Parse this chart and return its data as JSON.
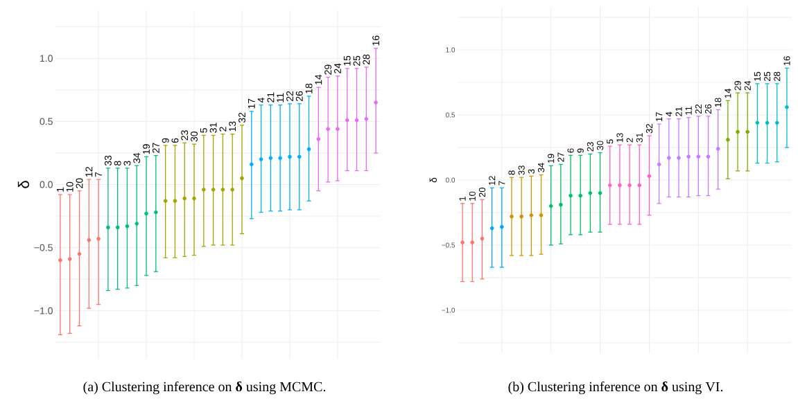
{
  "chart_data": [
    {
      "type": "scatter",
      "ylabel": "δ",
      "grid": true,
      "tick_labels": "y",
      "categories": [
        null,
        null,
        null,
        null,
        null,
        null,
        null,
        null,
        null,
        null,
        null,
        null,
        null,
        null,
        null,
        null,
        null,
        null,
        null,
        null,
        null,
        null,
        null,
        null,
        null,
        null,
        null,
        null,
        null,
        null,
        null,
        null,
        null,
        null
      ],
      "ylim": [
        -1.38,
        1.38
      ],
      "yticks": [
        {
          "value": -1.25,
          "label": null
        },
        {
          "value": -1,
          "label": "−1.0"
        },
        {
          "value": -0.75,
          "label": null
        },
        {
          "value": -0.5,
          "label": "−0.5"
        },
        {
          "value": -0.25,
          "label": null
        },
        {
          "value": 0,
          "label": "0.0"
        },
        {
          "value": 0.25,
          "label": null
        },
        {
          "value": 0.5,
          "label": "0.5"
        },
        {
          "value": 0.75,
          "label": null
        },
        {
          "value": 1,
          "label": "1.0"
        },
        {
          "value": 1.25,
          "label": null
        }
      ],
      "values": [
        -0.6,
        -0.59,
        -0.55,
        -0.44,
        -0.43,
        -0.34,
        -0.34,
        -0.33,
        -0.31,
        -0.23,
        -0.22,
        -0.13,
        -0.13,
        -0.11,
        -0.11,
        -0.04,
        -0.04,
        -0.04,
        -0.04,
        0.05,
        0.16,
        0.2,
        0.21,
        0.21,
        0.22,
        0.22,
        0.28,
        0.36,
        0.44,
        0.44,
        0.51,
        0.51,
        0.52,
        0.65
      ],
      "errors": [
        [
          -1.19,
          -0.08
        ],
        [
          -1.18,
          -0.08
        ],
        [
          -1.12,
          -0.05
        ],
        [
          -0.98,
          0.04
        ],
        [
          -0.95,
          0.04
        ],
        [
          -0.84,
          0.13
        ],
        [
          -0.83,
          0.13
        ],
        [
          -0.82,
          0.13
        ],
        [
          -0.8,
          0.15
        ],
        [
          -0.72,
          0.22
        ],
        [
          -0.69,
          0.23
        ],
        [
          -0.58,
          0.31
        ],
        [
          -0.58,
          0.31
        ],
        [
          -0.57,
          0.33
        ],
        [
          -0.56,
          0.32
        ],
        [
          -0.49,
          0.39
        ],
        [
          -0.48,
          0.39
        ],
        [
          -0.48,
          0.4
        ],
        [
          -0.48,
          0.4
        ],
        [
          -0.39,
          0.47
        ],
        [
          -0.27,
          0.58
        ],
        [
          -0.22,
          0.63
        ],
        [
          -0.21,
          0.63
        ],
        [
          -0.21,
          0.63
        ],
        [
          -0.2,
          0.64
        ],
        [
          -0.2,
          0.64
        ],
        [
          -0.13,
          0.7
        ],
        [
          -0.05,
          0.77
        ],
        [
          0.02,
          0.85
        ],
        [
          0.03,
          0.86
        ],
        [
          0.11,
          0.92
        ],
        [
          0.11,
          0.92
        ],
        [
          0.11,
          0.93
        ],
        [
          0.25,
          1.08
        ]
      ],
      "colors": [
        "#f8766d",
        "#f8766d",
        "#f8766d",
        "#f8766d",
        "#f8766d",
        "#00bf7d",
        "#00bf7d",
        "#00bf7d",
        "#00bf7d",
        "#00bf7d",
        "#00bf7d",
        "#a3a500",
        "#a3a500",
        "#a3a500",
        "#a3a500",
        "#a3a500",
        "#a3a500",
        "#a3a500",
        "#a3a500",
        "#a3a500",
        "#00b0f6",
        "#00b0f6",
        "#00b0f6",
        "#00b0f6",
        "#00b0f6",
        "#00b0f6",
        "#00b0f6",
        "#e76bf3",
        "#e76bf3",
        "#e76bf3",
        "#e76bf3",
        "#e76bf3",
        "#e76bf3",
        "#e76bf3"
      ],
      "annotations": [
        {
          "text": "1",
          "y": -0.08
        },
        {
          "text": "10",
          "y": -0.08
        },
        {
          "text": "20",
          "y": -0.05
        },
        {
          "text": "12",
          "y": 0.04
        },
        {
          "text": "7",
          "y": 0.04
        },
        {
          "text": "33",
          "y": 0.13
        },
        {
          "text": "8",
          "y": 0.13
        },
        {
          "text": "3",
          "y": 0.13
        },
        {
          "text": "34",
          "y": 0.15
        },
        {
          "text": "19",
          "y": 0.22
        },
        {
          "text": "27",
          "y": 0.23
        },
        {
          "text": "9",
          "y": 0.31
        },
        {
          "text": "6",
          "y": 0.31
        },
        {
          "text": "23",
          "y": 0.33
        },
        {
          "text": "30",
          "y": 0.32
        },
        {
          "text": "5",
          "y": 0.39
        },
        {
          "text": "31",
          "y": 0.39
        },
        {
          "text": "2",
          "y": 0.4
        },
        {
          "text": "13",
          "y": 0.4
        },
        {
          "text": "32",
          "y": 0.47
        },
        {
          "text": "17",
          "y": 0.58
        },
        {
          "text": "4",
          "y": 0.63
        },
        {
          "text": "21",
          "y": 0.63
        },
        {
          "text": "11",
          "y": 0.63
        },
        {
          "text": "22",
          "y": 0.64
        },
        {
          "text": "26",
          "y": 0.64
        },
        {
          "text": "18",
          "y": 0.7
        },
        {
          "text": "14",
          "y": 0.77
        },
        {
          "text": "29",
          "y": 0.85
        },
        {
          "text": "24",
          "y": 0.86
        },
        {
          "text": "15",
          "y": 0.92
        },
        {
          "text": "25",
          "y": 0.92
        },
        {
          "text": "28",
          "y": 0.93
        },
        {
          "text": "16",
          "y": 1.08
        },
        "(a) Clustering inference on **δ** using MCMC."
      ]
    },
    {
      "type": "scatter",
      "ylabel": "δ",
      "grid": true,
      "tick_labels": "y",
      "categories": [
        null,
        null,
        null,
        null,
        null,
        null,
        null,
        null,
        null,
        null,
        null,
        null,
        null,
        null,
        null,
        null,
        null,
        null,
        null,
        null,
        null,
        null,
        null,
        null,
        null,
        null,
        null,
        null,
        null,
        null,
        null,
        null,
        null,
        null
      ],
      "ylim": [
        -1.33,
        1.33
      ],
      "yticks": [
        {
          "value": -1.25,
          "label": null
        },
        {
          "value": -1,
          "label": "−1.0"
        },
        {
          "value": -0.75,
          "label": null
        },
        {
          "value": -0.5,
          "label": "−0.5"
        },
        {
          "value": -0.25,
          "label": null
        },
        {
          "value": 0,
          "label": "0.0"
        },
        {
          "value": 0.25,
          "label": null
        },
        {
          "value": 0.5,
          "label": "0.5"
        },
        {
          "value": 0.75,
          "label": null
        },
        {
          "value": 1,
          "label": "1.0"
        },
        {
          "value": 1.25,
          "label": null
        }
      ],
      "values": [
        -0.48,
        -0.48,
        -0.45,
        -0.37,
        -0.36,
        -0.28,
        -0.28,
        -0.27,
        -0.27,
        -0.2,
        -0.19,
        -0.12,
        -0.12,
        -0.1,
        -0.1,
        -0.04,
        -0.04,
        -0.04,
        -0.04,
        0.03,
        0.12,
        0.17,
        0.17,
        0.18,
        0.18,
        0.18,
        0.24,
        0.31,
        0.37,
        0.37,
        0.44,
        0.44,
        0.44,
        0.56
      ],
      "errors": [
        [
          -0.78,
          -0.18
        ],
        [
          -0.78,
          -0.18
        ],
        [
          -0.76,
          -0.15
        ],
        [
          -0.67,
          -0.06
        ],
        [
          -0.67,
          -0.06
        ],
        [
          -0.58,
          0.02
        ],
        [
          -0.58,
          0.02
        ],
        [
          -0.58,
          0.03
        ],
        [
          -0.57,
          0.04
        ],
        [
          -0.5,
          0.11
        ],
        [
          -0.49,
          0.12
        ],
        [
          -0.42,
          0.19
        ],
        [
          -0.42,
          0.19
        ],
        [
          -0.4,
          0.2
        ],
        [
          -0.4,
          0.21
        ],
        [
          -0.34,
          0.26
        ],
        [
          -0.34,
          0.27
        ],
        [
          -0.34,
          0.27
        ],
        [
          -0.34,
          0.27
        ],
        [
          -0.27,
          0.34
        ],
        [
          -0.18,
          0.43
        ],
        [
          -0.13,
          0.47
        ],
        [
          -0.13,
          0.47
        ],
        [
          -0.13,
          0.48
        ],
        [
          -0.12,
          0.49
        ],
        [
          -0.12,
          0.49
        ],
        [
          -0.07,
          0.54
        ],
        [
          0.01,
          0.61
        ],
        [
          0.07,
          0.67
        ],
        [
          0.07,
          0.67
        ],
        [
          0.13,
          0.74
        ],
        [
          0.13,
          0.74
        ],
        [
          0.14,
          0.74
        ],
        [
          0.25,
          0.86
        ]
      ],
      "colors": [
        "#f8766d",
        "#f8766d",
        "#f8766d",
        "#00a9ff",
        "#00a9ff",
        "#cd9600",
        "#cd9600",
        "#cd9600",
        "#cd9600",
        "#00be67",
        "#00be67",
        "#00be67",
        "#00be67",
        "#00be67",
        "#00be67",
        "#ff61c3",
        "#ff61c3",
        "#ff61c3",
        "#ff61c3",
        "#ff61c3",
        "#c77cff",
        "#c77cff",
        "#c77cff",
        "#c77cff",
        "#c77cff",
        "#c77cff",
        "#c77cff",
        "#7cae00",
        "#7cae00",
        "#7cae00",
        "#00bfc4",
        "#00bfc4",
        "#00bfc4",
        "#00bfc4"
      ],
      "annotations": [
        {
          "text": "1",
          "y": -0.18
        },
        {
          "text": "10",
          "y": -0.18
        },
        {
          "text": "20",
          "y": -0.15
        },
        {
          "text": "12",
          "y": -0.06
        },
        {
          "text": "7",
          "y": -0.06
        },
        {
          "text": "8",
          "y": 0.02
        },
        {
          "text": "33",
          "y": 0.02
        },
        {
          "text": "3",
          "y": 0.03
        },
        {
          "text": "34",
          "y": 0.04
        },
        {
          "text": "19",
          "y": 0.11
        },
        {
          "text": "27",
          "y": 0.12
        },
        {
          "text": "6",
          "y": 0.19
        },
        {
          "text": "9",
          "y": 0.19
        },
        {
          "text": "23",
          "y": 0.2
        },
        {
          "text": "30",
          "y": 0.21
        },
        {
          "text": "5",
          "y": 0.26
        },
        {
          "text": "13",
          "y": 0.27
        },
        {
          "text": "2",
          "y": 0.27
        },
        {
          "text": "31",
          "y": 0.27
        },
        {
          "text": "32",
          "y": 0.34
        },
        {
          "text": "17",
          "y": 0.43
        },
        {
          "text": "4",
          "y": 0.47
        },
        {
          "text": "21",
          "y": 0.47
        },
        {
          "text": "11",
          "y": 0.48
        },
        {
          "text": "22",
          "y": 0.49
        },
        {
          "text": "26",
          "y": 0.49
        },
        {
          "text": "18",
          "y": 0.54
        },
        {
          "text": "14",
          "y": 0.61
        },
        {
          "text": "29",
          "y": 0.67
        },
        {
          "text": "24",
          "y": 0.67
        },
        {
          "text": "15",
          "y": 0.74
        },
        {
          "text": "25",
          "y": 0.74
        },
        {
          "text": "28",
          "y": 0.74
        },
        {
          "text": "16",
          "y": 0.86
        },
        "(b) Clustering inference on **δ** using VI."
      ]
    }
  ]
}
